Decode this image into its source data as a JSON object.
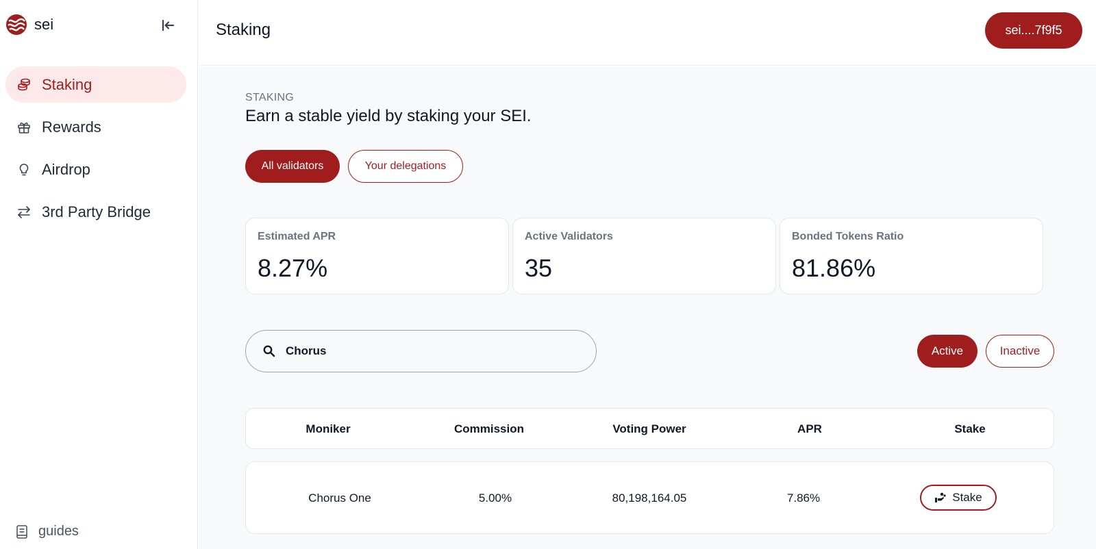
{
  "app": {
    "name": "sei"
  },
  "sidebar": {
    "items": [
      {
        "label": "Staking",
        "icon": "coins-icon",
        "active": true
      },
      {
        "label": "Rewards",
        "icon": "gift-icon",
        "active": false
      },
      {
        "label": "Airdrop",
        "icon": "lightbulb-icon",
        "active": false
      },
      {
        "label": "3rd Party Bridge",
        "icon": "arrows-exchange-icon",
        "active": false
      }
    ],
    "footer_link": "guides"
  },
  "header": {
    "title": "Staking",
    "wallet": "sei....7f9f5"
  },
  "section": {
    "eyebrow": "STAKING",
    "subtitle": "Earn a stable yield by staking your SEI."
  },
  "tabs": {
    "all": "All validators",
    "delegations": "Your delegations"
  },
  "stats": [
    {
      "label": "Estimated APR",
      "value": "8.27%"
    },
    {
      "label": "Active Validators",
      "value": "35"
    },
    {
      "label": "Bonded Tokens Ratio",
      "value": "81.86%"
    }
  ],
  "search": {
    "value": "Chorus"
  },
  "filters": {
    "active": "Active",
    "inactive": "Inactive"
  },
  "table": {
    "columns": [
      "Moniker",
      "Commission",
      "Voting Power",
      "APR",
      "Stake"
    ],
    "rows": [
      {
        "moniker": "Chorus One",
        "commission": "5.00%",
        "voting_power": "80,198,164.05",
        "apr": "7.86%",
        "action": "Stake"
      }
    ]
  },
  "colors": {
    "accent": "#9f1d1d",
    "accent_light": "#fde8ea",
    "background": "#f8f9fb"
  }
}
